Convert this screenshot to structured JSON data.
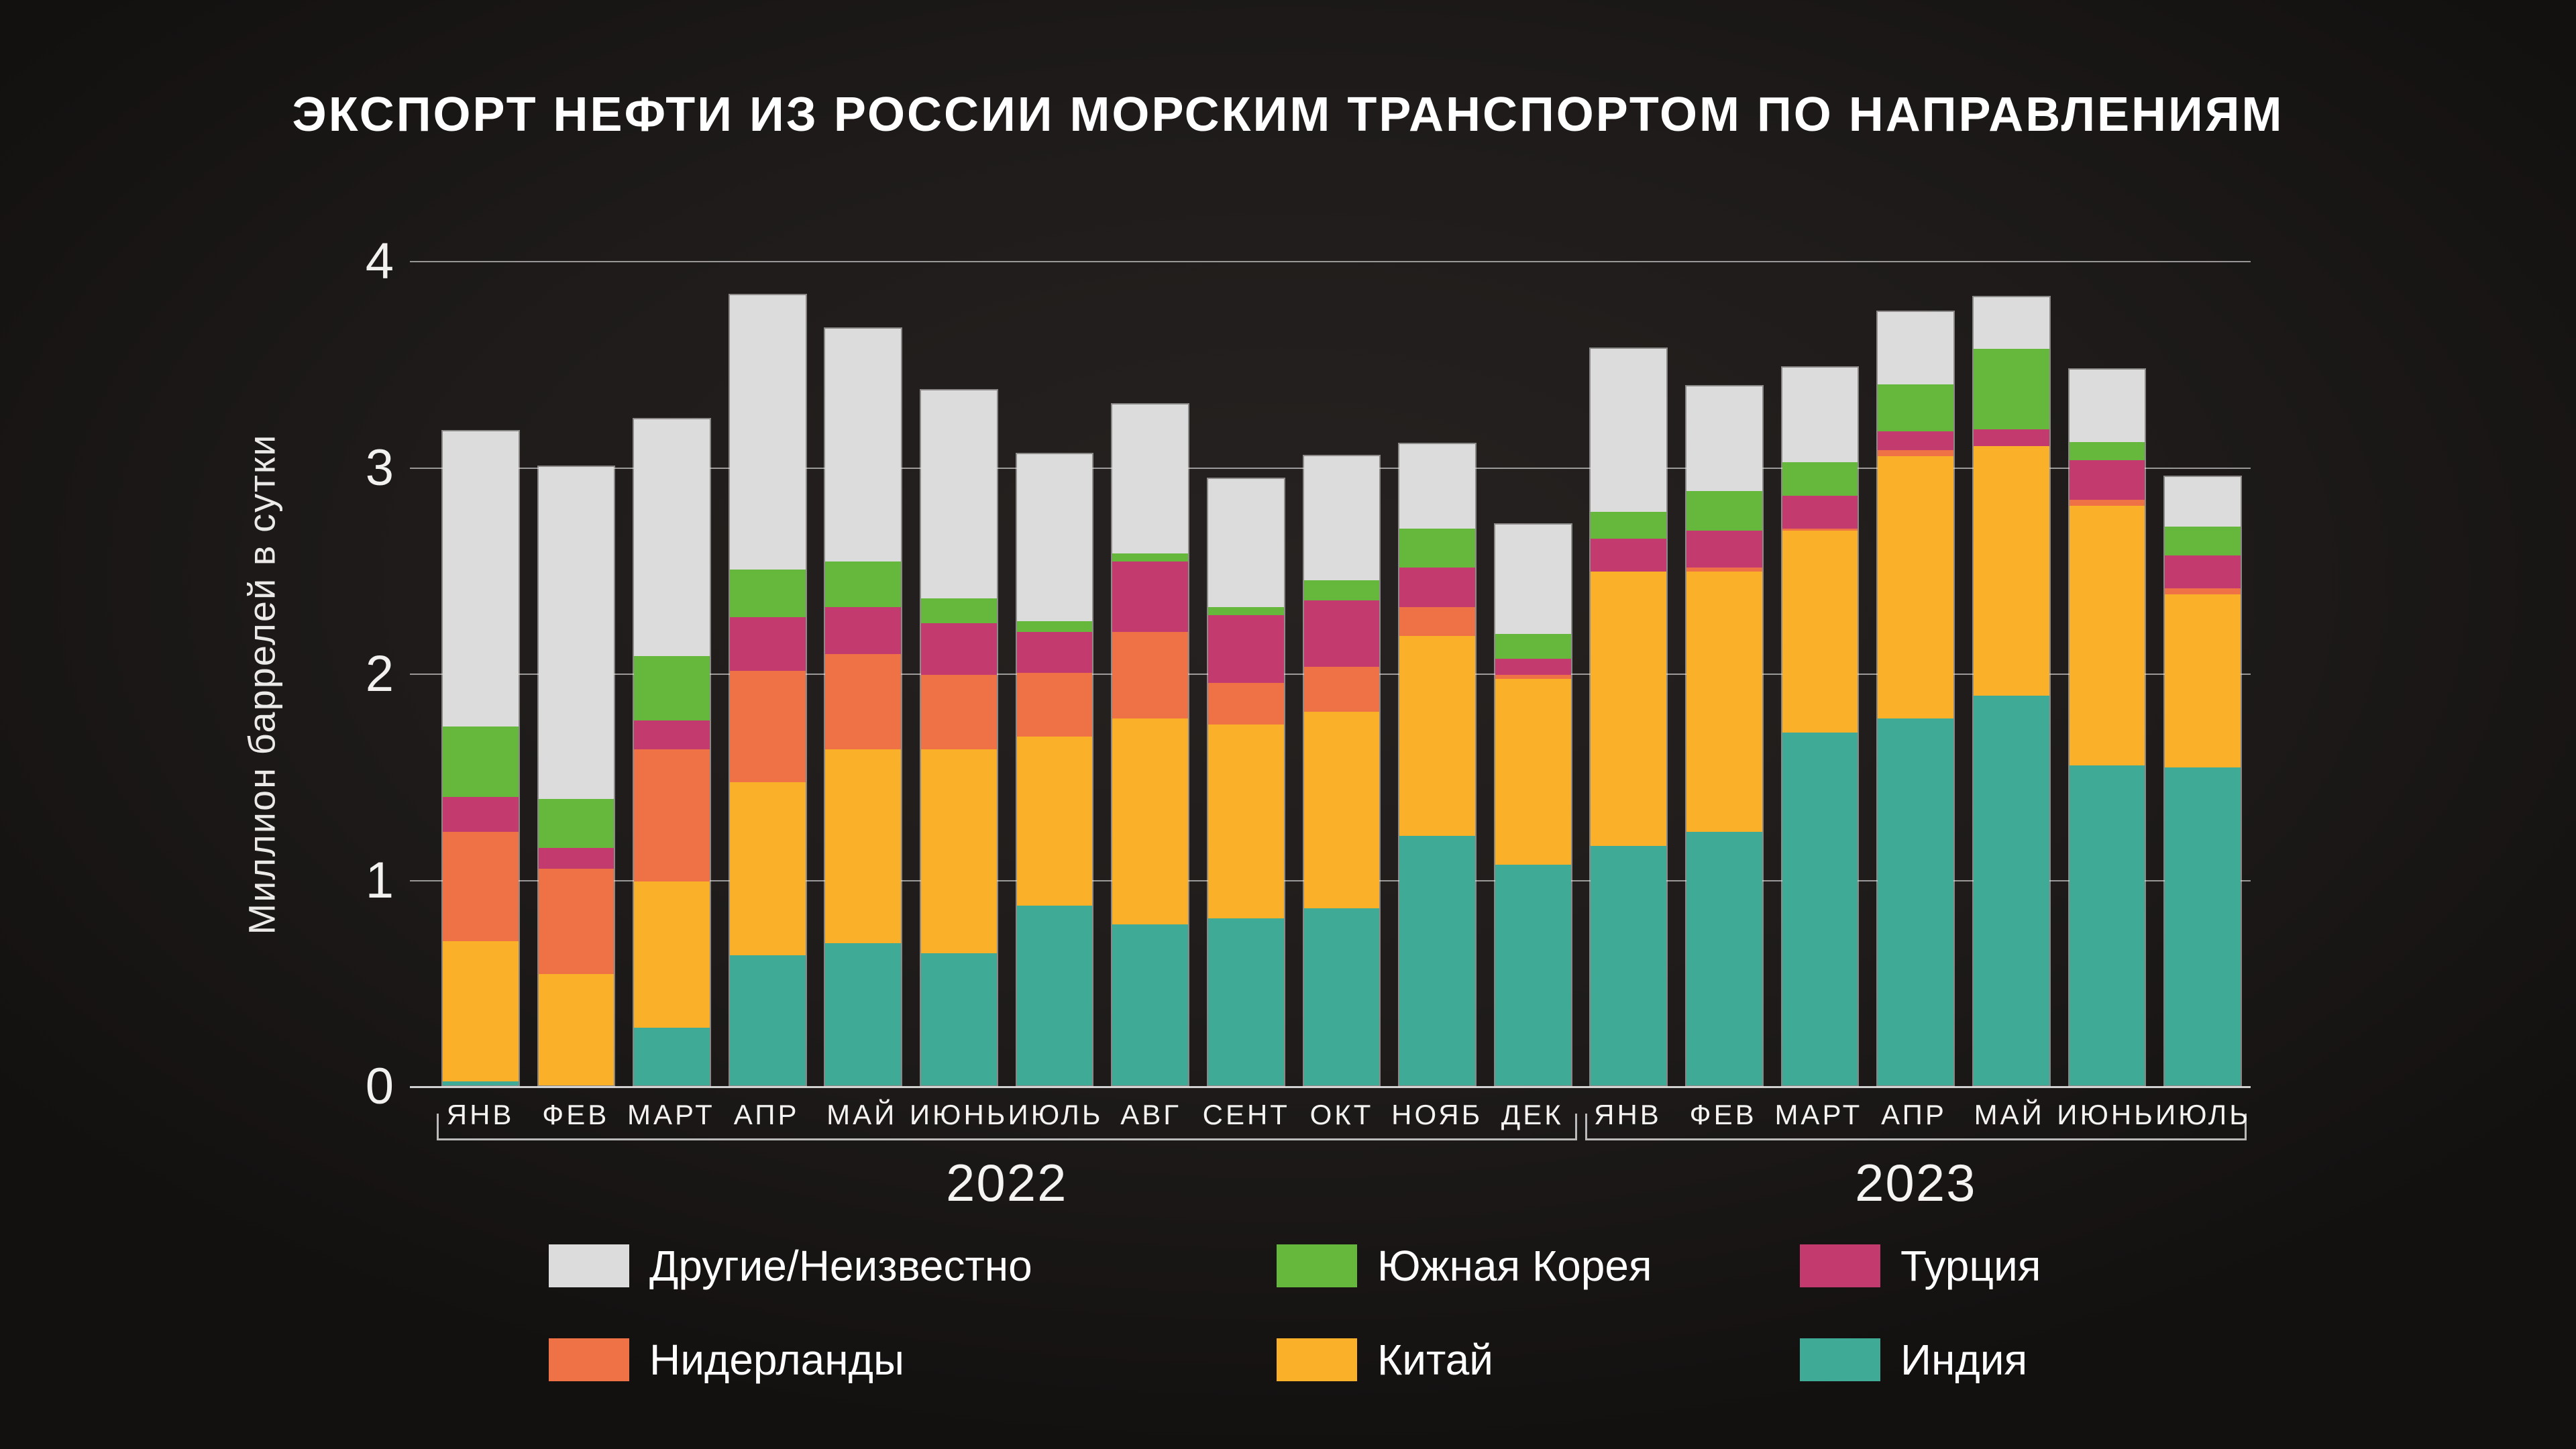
{
  "title": "ЭКСПОРТ НЕФТИ ИЗ РОССИИ МОРСКИМ ТРАНСПОРТОМ ПО НАПРАВЛЕНИЯМ",
  "y_axis": {
    "label": "Миллион баррелей в сутки",
    "ticks": [
      "0",
      "1",
      "2",
      "3",
      "4"
    ],
    "max": 4
  },
  "x_axis": {
    "year_groups": [
      {
        "year": "2022",
        "months": [
          "ЯНВ",
          "ФЕВ",
          "МАРТ",
          "АПР",
          "МАЙ",
          "ИЮНЬ",
          "ИЮЛЬ",
          "АВГ",
          "СЕНТ",
          "ОКТ",
          "НОЯБ",
          "ДЕК"
        ],
        "month_keys": [
          "jan",
          "feb",
          "mar",
          "apr",
          "may",
          "jun",
          "jul",
          "aug",
          "sep",
          "oct",
          "nov",
          "dec"
        ]
      },
      {
        "year": "2023",
        "months": [
          "ЯНВ",
          "ФЕВ",
          "МАРТ",
          "АПР",
          "МАЙ",
          "ИЮНЬ",
          "ИЮЛЬ"
        ],
        "month_keys": [
          "jan",
          "feb",
          "mar",
          "apr",
          "may",
          "jun",
          "jul"
        ]
      }
    ]
  },
  "legend": [
    {
      "key": "other-unknown",
      "label": "Другие/Неизвестно",
      "color": "#dcdcdc"
    },
    {
      "key": "south-korea",
      "label": "Южная Корея",
      "color": "#66b83d"
    },
    {
      "key": "turkey",
      "label": "Турция",
      "color": "#c23a6e"
    },
    {
      "key": "netherlands",
      "label": "Нидерланды",
      "color": "#ee7246"
    },
    {
      "key": "china",
      "label": "Китай",
      "color": "#fbb02a"
    },
    {
      "key": "india",
      "label": "Индия",
      "color": "#3fab97"
    }
  ],
  "chart_data": {
    "type": "bar",
    "stacked": true,
    "ylim": [
      0,
      4
    ],
    "grid": true,
    "legend_position": "bottom",
    "ylabel": "Миллион баррелей в сутки",
    "categories": [
      "2022-ЯНВ",
      "2022-ФЕВ",
      "2022-МАРТ",
      "2022-АПР",
      "2022-МАЙ",
      "2022-ИЮНЬ",
      "2022-ИЮЛЬ",
      "2022-АВГ",
      "2022-СЕНТ",
      "2022-ОКТ",
      "2022-НОЯБ",
      "2022-ДЕК",
      "2023-ЯНВ",
      "2023-ФЕВ",
      "2023-МАРТ",
      "2023-АПР",
      "2023-МАЙ",
      "2023-ИЮНЬ",
      "2023-ИЮЛЬ"
    ],
    "series": [
      {
        "key": "india",
        "name": "Индия",
        "color": "#3fab97",
        "values": [
          0.02,
          0.0,
          0.28,
          0.63,
          0.69,
          0.64,
          0.87,
          0.78,
          0.81,
          0.86,
          1.21,
          1.07,
          1.16,
          1.23,
          1.71,
          1.78,
          1.89,
          1.55,
          1.54
        ]
      },
      {
        "key": "china",
        "name": "Китай",
        "color": "#fbb02a",
        "values": [
          0.68,
          0.54,
          0.71,
          0.84,
          0.94,
          0.99,
          0.82,
          1.0,
          0.94,
          0.95,
          0.97,
          0.9,
          1.33,
          1.26,
          0.98,
          1.27,
          1.21,
          1.26,
          0.84
        ]
      },
      {
        "key": "netherlands",
        "name": "Нидерланды",
        "color": "#ee7246",
        "values": [
          0.53,
          0.51,
          0.64,
          0.54,
          0.46,
          0.36,
          0.31,
          0.42,
          0.2,
          0.22,
          0.14,
          0.02,
          0.0,
          0.02,
          0.01,
          0.03,
          0.0,
          0.03,
          0.03
        ]
      },
      {
        "key": "turkey",
        "name": "Турция",
        "color": "#c23a6e",
        "values": [
          0.17,
          0.1,
          0.14,
          0.26,
          0.23,
          0.25,
          0.2,
          0.34,
          0.33,
          0.32,
          0.19,
          0.08,
          0.16,
          0.18,
          0.16,
          0.09,
          0.08,
          0.19,
          0.16
        ]
      },
      {
        "key": "south-korea",
        "name": "Южная Корея",
        "color": "#66b83d",
        "values": [
          0.34,
          0.24,
          0.31,
          0.23,
          0.22,
          0.12,
          0.05,
          0.04,
          0.04,
          0.1,
          0.19,
          0.12,
          0.13,
          0.19,
          0.16,
          0.23,
          0.39,
          0.09,
          0.14
        ]
      },
      {
        "key": "other-unknown",
        "name": "Другие/Неизвестно",
        "color": "#dcdcdc",
        "values": [
          1.43,
          1.61,
          1.15,
          1.33,
          1.13,
          1.01,
          0.81,
          0.72,
          0.62,
          0.6,
          0.41,
          0.53,
          0.79,
          0.51,
          0.46,
          0.35,
          0.25,
          0.35,
          0.24
        ]
      }
    ]
  }
}
